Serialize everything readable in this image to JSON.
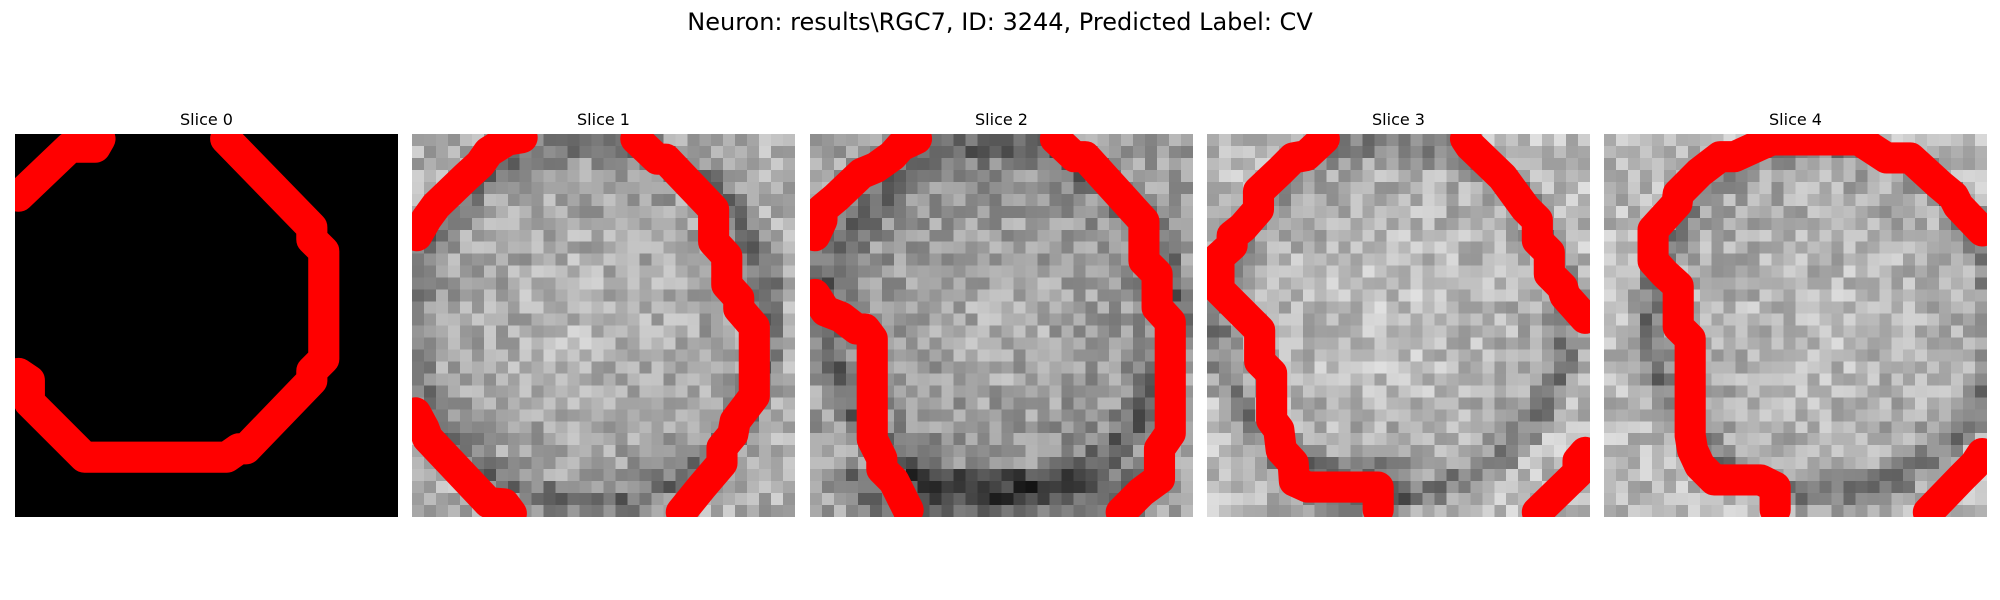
{
  "figure": {
    "title": "Neuron: results\\RGC7, ID: 3244, Predicted Label: CV"
  },
  "colors": {
    "background": "#ffffff",
    "contour": "#ff0000",
    "image_palette": "grayscale"
  },
  "panels": [
    {
      "title": "Slice 0",
      "image": "black-slice"
    },
    {
      "title": "Slice 1",
      "image": "grayscale-neuron-slice"
    },
    {
      "title": "Slice 2",
      "image": "grayscale-neuron-slice"
    },
    {
      "title": "Slice 3",
      "image": "grayscale-neuron-slice"
    },
    {
      "title": "Slice 4",
      "image": "grayscale-neuron-slice"
    }
  ]
}
